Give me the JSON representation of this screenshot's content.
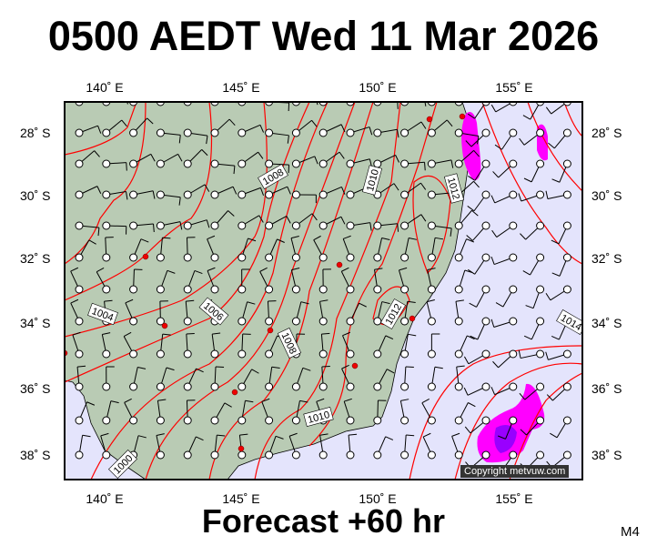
{
  "title": "0500 AEDT Wed 11 Mar 2026",
  "footer": "Forecast +60 hr",
  "model": "M4",
  "copyright": "Copyright metvuw.com",
  "lon_ticks": [
    "140˚ E",
    "145˚ E",
    "150˚ E",
    "155˚ E"
  ],
  "lat_ticks": [
    "28˚ S",
    "30˚ S",
    "32˚ S",
    "34˚ S",
    "36˚ S",
    "38˚ S"
  ],
  "isobar_labels": [
    "1000",
    "1004",
    "1006",
    "1008",
    "1008",
    "1010",
    "1010",
    "1012",
    "1012",
    "1014"
  ],
  "colors": {
    "land": "#b9cbb4",
    "sea": "#e4e4fc",
    "isobar": "#ff0000",
    "rain_light": "#ff00ff",
    "rain_heavy": "#9900ff"
  }
}
